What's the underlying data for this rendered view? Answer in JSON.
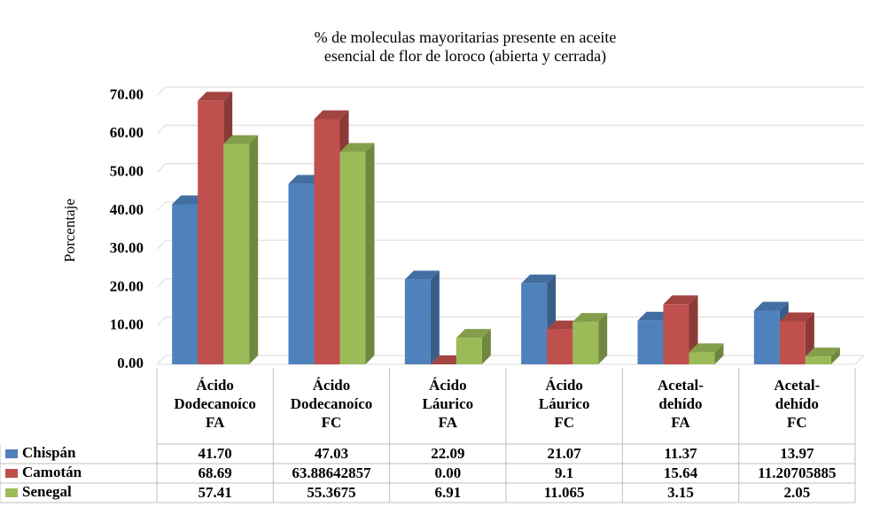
{
  "chart_data": {
    "type": "bar",
    "title": [
      "% de moleculas mayoritarias presente en aceite",
      "esencial de flor de loroco (abierta y cerrada)"
    ],
    "ylabel": "Porcentaje",
    "categories": [
      [
        "Ácido",
        "Dodecanoíco",
        "FA"
      ],
      [
        "Ácido",
        "Dodecanoíco",
        "FC"
      ],
      [
        "Ácido",
        "Láurico",
        "FA"
      ],
      [
        "Ácido",
        "Láurico",
        "FC"
      ],
      [
        "Acetal-",
        "dehído",
        "FA"
      ],
      [
        "Acetal-",
        "dehído",
        "FC"
      ]
    ],
    "series": [
      {
        "name": "Chispán",
        "color": "#4f81bd",
        "values": [
          41.7,
          47.03,
          22.09,
          21.07,
          11.37,
          13.97
        ],
        "value_labels": [
          "41.70",
          "47.03",
          "22.09",
          "21.07",
          "11.37",
          "13.97"
        ]
      },
      {
        "name": "Camotán",
        "color": "#c0504d",
        "values": [
          68.69,
          63.88642857,
          0,
          9.1,
          15.64,
          11.20705885
        ],
        "value_labels": [
          "68.69",
          "63.88642857",
          "0.00",
          "9.1",
          "15.64",
          "11.20705885"
        ]
      },
      {
        "name": "Senegal",
        "color": "#9bbb59",
        "values": [
          57.41,
          55.3675,
          6.91,
          11.065,
          3.15,
          2.05
        ],
        "value_labels": [
          "57.41",
          "55.3675",
          "6.91",
          "11.065",
          "3.15",
          "2.05"
        ]
      }
    ],
    "ylim": [
      0,
      70
    ],
    "yticks": [
      {
        "value": 0,
        "label": "0.00"
      },
      {
        "value": 10,
        "label": "10.00"
      },
      {
        "value": 20,
        "label": "20.00"
      },
      {
        "value": 30,
        "label": "30.00"
      },
      {
        "value": 40,
        "label": "40.00"
      },
      {
        "value": 50,
        "label": "50.00"
      },
      {
        "value": 60,
        "label": "60.00"
      },
      {
        "value": 70,
        "label": "70.00"
      }
    ],
    "grid": true
  }
}
